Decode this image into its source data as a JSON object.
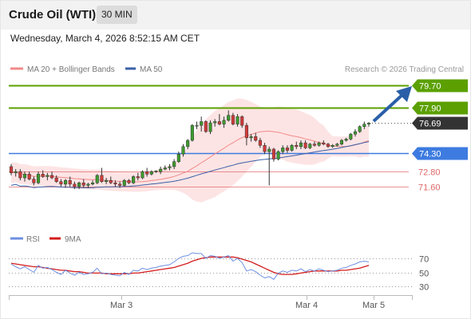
{
  "header": {
    "title": "Crude Oil (WTI)",
    "timeframe": "30 MIN"
  },
  "datetime": "Wednesday, March 4, 2026 8:52:15 AM CET",
  "chart_data": {
    "type": "candlestick",
    "legend": [
      {
        "label": "MA 20 + Bollinger Bands",
        "color": "#f08a8a"
      },
      {
        "label": "MA 50",
        "color": "#3a5fa8"
      }
    ],
    "credit": "Research © 2026 Trading Central",
    "y_range": [
      70.3,
      80.3
    ],
    "levels": [
      {
        "label": "79.70",
        "value": 79.7,
        "color": "#5ba000",
        "kind": "resistance"
      },
      {
        "label": "77.90",
        "value": 77.9,
        "color": "#5ba000",
        "kind": "resistance"
      },
      {
        "label": "76.69",
        "value": 76.69,
        "color": "#333333",
        "kind": "last"
      },
      {
        "label": "74.30",
        "value": 74.3,
        "color": "#3d7be0",
        "kind": "pivot"
      },
      {
        "label": "72.80",
        "value": 72.8,
        "color": "#e06666",
        "kind": "support"
      },
      {
        "label": "71.60",
        "value": 71.6,
        "color": "#e06666",
        "kind": "support"
      }
    ],
    "x_labels": [
      "Mar 3",
      "Mar 4",
      "Mar 5"
    ],
    "candles": [
      [
        73.2,
        73.4,
        72.5,
        72.7
      ],
      [
        72.7,
        73.0,
        72.4,
        72.8
      ],
      [
        72.8,
        73.0,
        72.1,
        72.3
      ],
      [
        72.3,
        72.8,
        72.0,
        72.6
      ],
      [
        72.6,
        72.8,
        72.1,
        72.2
      ],
      [
        72.2,
        72.4,
        71.7,
        71.9
      ],
      [
        71.9,
        72.8,
        71.8,
        72.6
      ],
      [
        72.6,
        72.9,
        72.3,
        72.4
      ],
      [
        72.4,
        72.7,
        72.1,
        72.5
      ],
      [
        72.5,
        72.8,
        72.2,
        72.3
      ],
      [
        72.3,
        72.5,
        71.9,
        72.0
      ],
      [
        72.0,
        72.2,
        71.6,
        71.8
      ],
      [
        71.8,
        72.2,
        71.5,
        72.1
      ],
      [
        72.1,
        72.4,
        71.6,
        71.8
      ],
      [
        71.8,
        72.0,
        71.4,
        71.6
      ],
      [
        71.6,
        72.0,
        71.4,
        71.9
      ],
      [
        71.9,
        72.2,
        71.5,
        71.7
      ],
      [
        71.7,
        71.9,
        71.5,
        71.8
      ],
      [
        71.8,
        72.1,
        71.7,
        71.9
      ],
      [
        71.9,
        72.6,
        71.8,
        72.5
      ],
      [
        72.5,
        73.1,
        71.9,
        72.0
      ],
      [
        72.0,
        72.3,
        71.8,
        72.1
      ],
      [
        72.1,
        72.4,
        71.8,
        71.9
      ],
      [
        71.9,
        72.1,
        71.6,
        71.8
      ],
      [
        71.8,
        72.0,
        71.5,
        71.7
      ],
      [
        71.7,
        72.2,
        71.6,
        72.1
      ],
      [
        72.1,
        72.2,
        71.8,
        71.9
      ],
      [
        71.9,
        72.5,
        71.8,
        72.4
      ],
      [
        72.4,
        72.7,
        72.1,
        72.3
      ],
      [
        72.3,
        72.9,
        72.2,
        72.8
      ],
      [
        72.8,
        73.1,
        72.4,
        72.6
      ],
      [
        72.6,
        72.9,
        72.5,
        72.8
      ],
      [
        72.8,
        72.9,
        72.7,
        72.85
      ],
      [
        72.8,
        73.2,
        72.6,
        73.0
      ],
      [
        73.0,
        73.3,
        72.9,
        73.1
      ],
      [
        73.1,
        73.4,
        72.9,
        73.2
      ],
      [
        73.2,
        73.8,
        73.0,
        73.6
      ],
      [
        73.6,
        74.4,
        73.5,
        74.2
      ],
      [
        74.2,
        75.0,
        74.0,
        74.8
      ],
      [
        74.8,
        75.4,
        74.6,
        75.3
      ],
      [
        75.3,
        76.6,
        75.2,
        76.5
      ],
      [
        76.5,
        76.8,
        76.2,
        76.5
      ],
      [
        76.5,
        77.2,
        76.0,
        76.8
      ],
      [
        76.8,
        76.9,
        75.9,
        76.0
      ],
      [
        76.0,
        76.9,
        75.8,
        76.7
      ],
      [
        76.7,
        77.0,
        76.4,
        76.8
      ],
      [
        76.8,
        77.4,
        76.5,
        76.6
      ],
      [
        76.6,
        77.2,
        76.3,
        76.9
      ],
      [
        76.9,
        77.7,
        76.8,
        77.3
      ],
      [
        77.3,
        77.5,
        76.5,
        76.6
      ],
      [
        76.6,
        77.4,
        76.4,
        77.2
      ],
      [
        77.2,
        77.3,
        76.3,
        76.5
      ],
      [
        76.5,
        76.7,
        74.9,
        75.5
      ],
      [
        75.5,
        75.8,
        75.2,
        75.6
      ],
      [
        75.6,
        75.9,
        75.2,
        75.3
      ],
      [
        75.3,
        75.5,
        74.7,
        74.9
      ],
      [
        74.9,
        75.1,
        74.2,
        74.4
      ],
      [
        74.4,
        74.8,
        71.7,
        74.6
      ],
      [
        74.6,
        74.7,
        73.6,
        73.8
      ],
      [
        73.8,
        74.5,
        73.7,
        74.4
      ],
      [
        74.4,
        74.9,
        74.2,
        74.7
      ],
      [
        74.7,
        74.9,
        74.3,
        74.5
      ],
      [
        74.5,
        75.0,
        74.4,
        74.9
      ],
      [
        74.9,
        75.2,
        74.6,
        74.8
      ],
      [
        74.8,
        75.3,
        74.6,
        75.1
      ],
      [
        75.1,
        75.3,
        74.6,
        74.7
      ],
      [
        74.7,
        75.1,
        74.6,
        75.0
      ],
      [
        75.0,
        75.2,
        74.8,
        74.9
      ],
      [
        74.9,
        75.2,
        74.8,
        75.1
      ],
      [
        75.1,
        75.3,
        74.9,
        75.0
      ],
      [
        75.0,
        75.1,
        74.7,
        74.8
      ],
      [
        74.8,
        75.0,
        74.7,
        74.9
      ],
      [
        74.9,
        75.1,
        74.8,
        75.0
      ],
      [
        75.0,
        75.4,
        74.9,
        75.3
      ],
      [
        75.3,
        75.5,
        75.2,
        75.4
      ],
      [
        75.4,
        75.9,
        75.3,
        75.8
      ],
      [
        75.8,
        76.2,
        75.6,
        76.0
      ],
      [
        76.0,
        76.5,
        75.9,
        76.4
      ],
      [
        76.4,
        76.8,
        76.2,
        76.6
      ],
      [
        76.6,
        76.75,
        76.4,
        76.69
      ]
    ],
    "rsi_panel": {
      "legend": [
        {
          "label": "RSI",
          "color": "#6d8fe0"
        },
        {
          "label": "9MA",
          "color": "#d41c1c"
        }
      ],
      "y_range": [
        20,
        80
      ],
      "ticks": [
        "70",
        "50",
        "30"
      ],
      "rsi": [
        62,
        58,
        55,
        58,
        54,
        50,
        60,
        56,
        57,
        54,
        50,
        47,
        53,
        49,
        46,
        50,
        47,
        48,
        50,
        56,
        48,
        49,
        47,
        46,
        45,
        50,
        47,
        53,
        52,
        56,
        54,
        56,
        57,
        59,
        60,
        61,
        65,
        70,
        73,
        74,
        78,
        77,
        77,
        70,
        74,
        73,
        70,
        72,
        74,
        66,
        70,
        64,
        52,
        54,
        51,
        46,
        42,
        44,
        40,
        49,
        52,
        50,
        53,
        52,
        55,
        51,
        54,
        52,
        55,
        53,
        51,
        52,
        53,
        56,
        57,
        60,
        62,
        65,
        66,
        65
      ],
      "ma9": [
        63,
        62,
        61,
        60,
        59,
        58,
        58,
        57,
        56,
        55,
        54,
        53,
        53,
        52,
        51,
        51,
        50,
        49,
        49,
        49,
        49,
        48,
        48,
        48,
        48,
        48,
        48,
        49,
        49,
        50,
        51,
        52,
        53,
        54,
        55,
        56,
        57,
        59,
        61,
        63,
        66,
        68,
        70,
        71,
        72,
        72,
        72,
        72,
        72,
        72,
        71,
        69,
        67,
        65,
        62,
        59,
        56,
        53,
        50,
        48,
        47,
        47,
        47,
        48,
        49,
        50,
        51,
        52,
        52,
        52,
        52,
        52,
        52,
        53,
        53,
        54,
        55,
        56,
        58,
        60
      ]
    }
  }
}
